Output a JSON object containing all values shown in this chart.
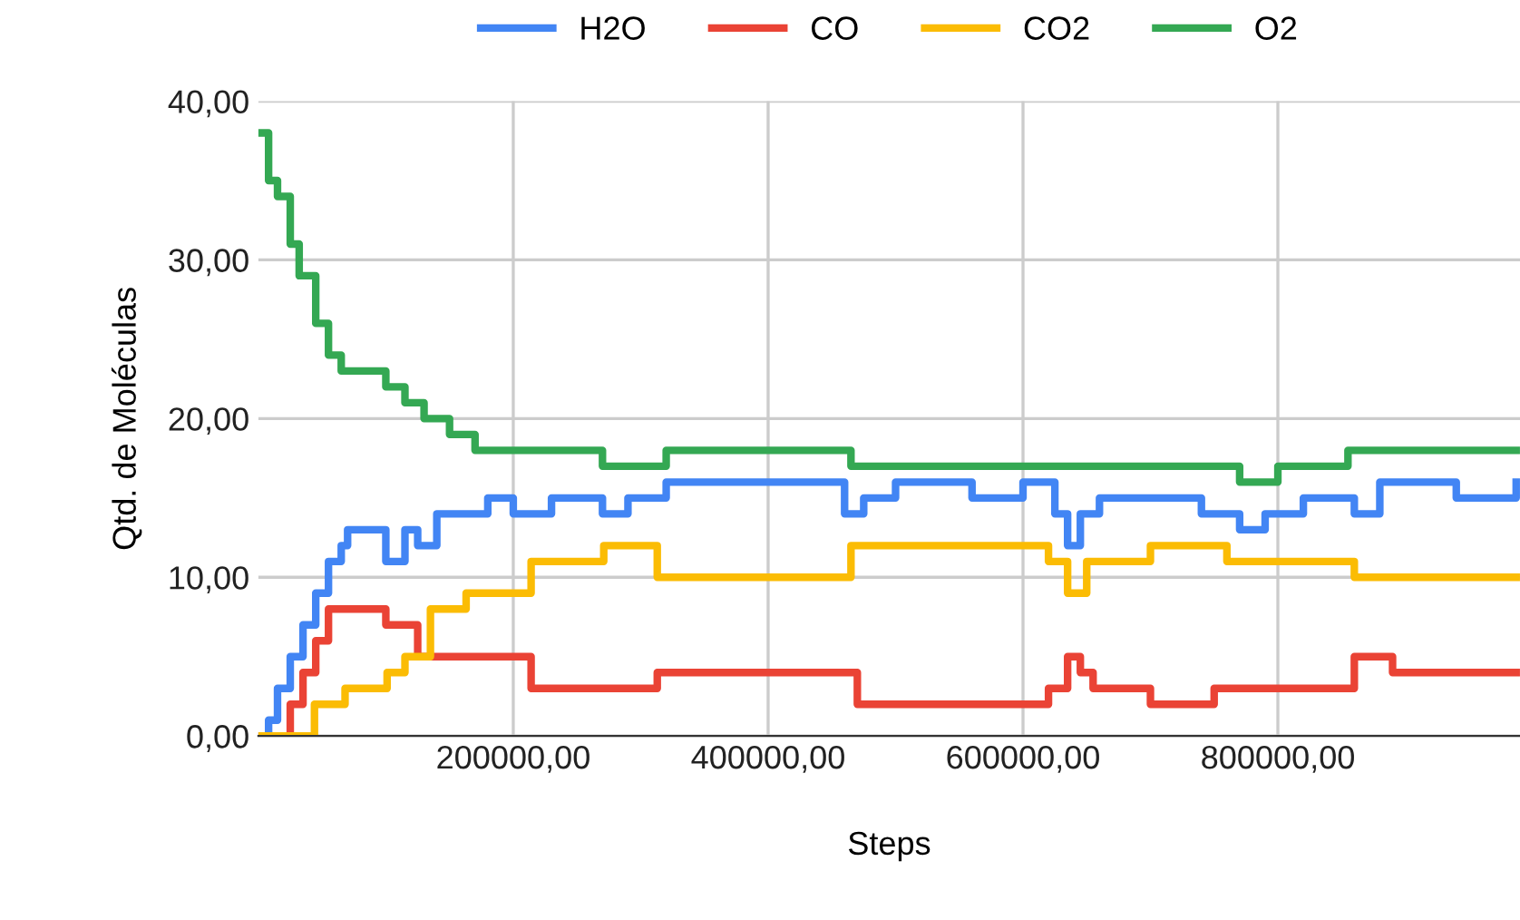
{
  "chart_data": {
    "type": "step",
    "xlabel": "Steps",
    "ylabel": "Qtd. de Moléculas",
    "legend": "top",
    "grid": true,
    "line_style": "solid",
    "marker": "none",
    "xlim": [
      0,
      990000
    ],
    "xticks": [
      {
        "value": 200000,
        "label": "200000,00"
      },
      {
        "value": 400000,
        "label": "400000,00"
      },
      {
        "value": 600000,
        "label": "600000,00"
      },
      {
        "value": 800000,
        "label": "800000,00"
      }
    ],
    "ylim": [
      0,
      40
    ],
    "yticks": [
      {
        "value": 0,
        "label": "0,00"
      },
      {
        "value": 10,
        "label": "10,00"
      },
      {
        "value": 20,
        "label": "20,00"
      },
      {
        "value": 30,
        "label": "30,00"
      },
      {
        "value": 40,
        "label": "40,00"
      }
    ],
    "series": [
      {
        "name": "H2O",
        "color": "#4285f4",
        "x": [
          0,
          8000,
          15000,
          25000,
          35000,
          45000,
          55000,
          65000,
          70000,
          80000,
          100000,
          115000,
          125000,
          140000,
          160000,
          180000,
          200000,
          230000,
          270000,
          290000,
          320000,
          380000,
          460000,
          475000,
          500000,
          560000,
          600000,
          625000,
          635000,
          645000,
          660000,
          700000,
          740000,
          770000,
          790000,
          820000,
          860000,
          880000,
          940000,
          987000
        ],
        "values": [
          0,
          1,
          3,
          5,
          7,
          9,
          11,
          12,
          13,
          13,
          11,
          13,
          12,
          14,
          14,
          15,
          14,
          15,
          14,
          15,
          16,
          16,
          14,
          15,
          16,
          15,
          16,
          14,
          12,
          14,
          15,
          15,
          14,
          13,
          14,
          15,
          14,
          16,
          15,
          16
        ]
      },
      {
        "name": "CO",
        "color": "#ea4335",
        "x": [
          0,
          25000,
          35000,
          45000,
          55000,
          90000,
          100000,
          125000,
          214000,
          240000,
          313000,
          470000,
          520000,
          600000,
          620000,
          635000,
          645000,
          655000,
          700000,
          750000,
          860000,
          890000,
          987000
        ],
        "values": [
          0,
          2,
          4,
          6,
          8,
          8,
          7,
          5,
          3,
          3,
          4,
          2,
          2,
          2,
          3,
          5,
          4,
          3,
          2,
          3,
          5,
          4,
          4
        ]
      },
      {
        "name": "CO2",
        "color": "#fbbc04",
        "x": [
          0,
          44000,
          68000,
          101000,
          115000,
          135000,
          163000,
          214000,
          271000,
          313000,
          465000,
          600000,
          620000,
          635000,
          650000,
          700000,
          760000,
          860000,
          987000
        ],
        "values": [
          0,
          2,
          3,
          4,
          5,
          8,
          9,
          11,
          12,
          10,
          12,
          12,
          11,
          9,
          11,
          12,
          11,
          10,
          10
        ]
      },
      {
        "name": "O2",
        "color": "#34a853",
        "x": [
          0,
          8000,
          15000,
          25000,
          32000,
          45000,
          55000,
          65000,
          100000,
          115000,
          130000,
          150000,
          170000,
          270000,
          320000,
          465000,
          770000,
          800000,
          855000,
          987000
        ],
        "values": [
          38,
          35,
          34,
          31,
          29,
          26,
          24,
          23,
          22,
          21,
          20,
          19,
          18,
          17,
          18,
          17,
          16,
          17,
          18,
          18
        ]
      }
    ]
  }
}
